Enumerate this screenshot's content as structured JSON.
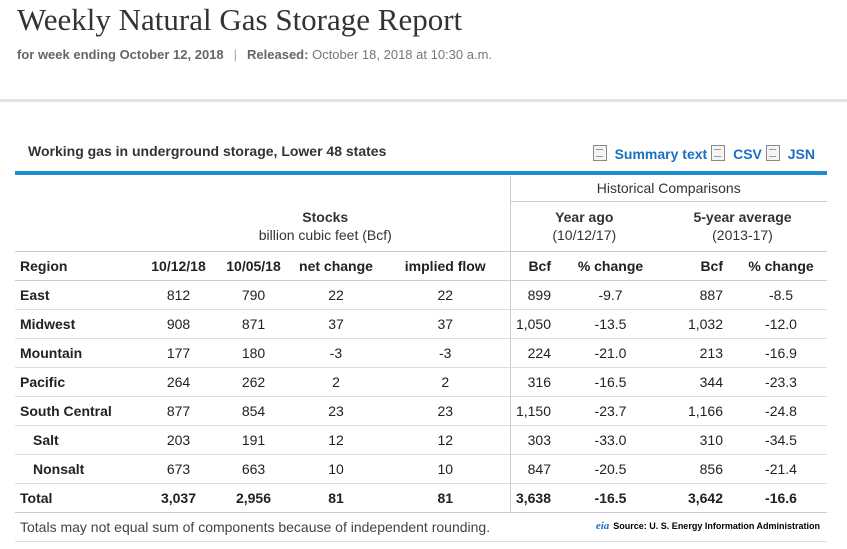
{
  "header": {
    "title": "Weekly Natural Gas Storage Report",
    "week_label": "for week ending October 12, 2018",
    "separator": "|",
    "released_label": "Released:",
    "released_value": "October 18, 2018 at 10:30 a.m."
  },
  "panel": {
    "title": "Working gas in underground storage, Lower 48 states",
    "links": [
      "Summary text",
      "CSV",
      "JSN"
    ]
  },
  "table": {
    "historical_label": "Historical Comparisons",
    "stocks_label": "Stocks",
    "stocks_unit": "billion cubic feet (Bcf)",
    "year_ago_label": "Year ago",
    "year_ago_date": "(10/12/17)",
    "five_year_label": "5-year average",
    "five_year_range": "(2013-17)",
    "columns": [
      "Region",
      "10/12/18",
      "10/05/18",
      "net change",
      "implied flow",
      "Bcf",
      "% change",
      "Bcf",
      "% change"
    ],
    "rows": [
      [
        "East",
        "812",
        "790",
        "22",
        "22",
        "899",
        "-9.7",
        "887",
        "-8.5"
      ],
      [
        "Midwest",
        "908",
        "871",
        "37",
        "37",
        "1,050",
        "-13.5",
        "1,032",
        "-12.0"
      ],
      [
        "Mountain",
        "177",
        "180",
        "-3",
        "-3",
        "224",
        "-21.0",
        "213",
        "-16.9"
      ],
      [
        "Pacific",
        "264",
        "262",
        "2",
        "2",
        "316",
        "-16.5",
        "344",
        "-23.3"
      ],
      [
        "South Central",
        "877",
        "854",
        "23",
        "23",
        "1,150",
        "-23.7",
        "1,166",
        "-24.8"
      ],
      [
        "Salt",
        "203",
        "191",
        "12",
        "12",
        "303",
        "-33.0",
        "310",
        "-34.5"
      ],
      [
        "Nonsalt",
        "673",
        "663",
        "10",
        "10",
        "847",
        "-20.5",
        "856",
        "-21.4"
      ],
      [
        "Total",
        "3,037",
        "2,956",
        "81",
        "81",
        "3,638",
        "-16.5",
        "3,642",
        "-16.6"
      ]
    ],
    "footnote": "Totals may not equal sum of components because of independent rounding.",
    "source_logo": "eia",
    "source": "Source:  U. S. Energy Information Administration"
  }
}
